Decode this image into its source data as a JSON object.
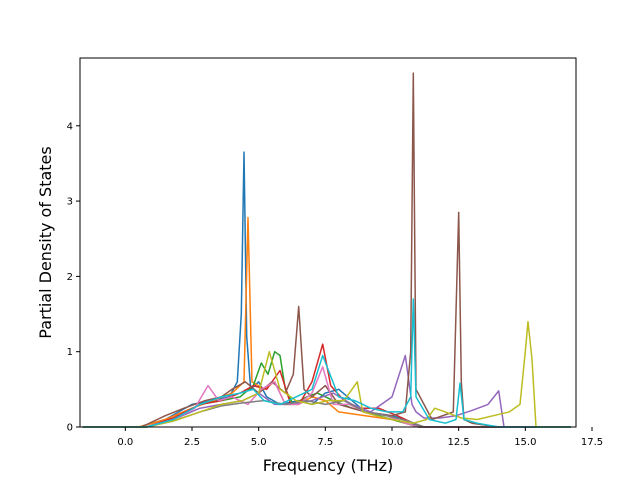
{
  "chart_data": {
    "type": "line",
    "title": "",
    "xlabel": "Frequency (THz)",
    "ylabel": "Partial Density of States",
    "xlim": [
      -1.7,
      16.9
    ],
    "ylim": [
      0,
      4.9
    ],
    "xticks": [
      0.0,
      2.5,
      5.0,
      7.5,
      10.0,
      12.5,
      15.0,
      17.5
    ],
    "xtick_labels": [
      "0.0",
      "2.5",
      "5.0",
      "7.5",
      "10.0",
      "12.5",
      "15.0",
      "17.5"
    ],
    "yticks": [
      0,
      1,
      2,
      3,
      4
    ],
    "ytick_labels": [
      "0",
      "1",
      "2",
      "3",
      "4"
    ],
    "grid": false,
    "legend": "none",
    "series": [
      {
        "color": "#1f77b4",
        "x": [
          -1.6,
          0.5,
          1.5,
          2.5,
          3.3,
          3.9,
          4.2,
          4.35,
          4.45,
          4.55,
          4.7,
          5.0,
          5.3,
          5.8,
          6.5,
          7.0,
          7.5,
          8.0,
          8.5,
          9.0,
          10.0,
          10.5,
          11.0,
          12.0,
          13.0,
          14.0,
          16.7
        ],
        "y": [
          0,
          0,
          0.1,
          0.3,
          0.35,
          0.4,
          0.6,
          1.5,
          3.65,
          1.2,
          0.5,
          0.6,
          0.4,
          0.3,
          0.35,
          0.3,
          0.45,
          0.5,
          0.35,
          0.2,
          0.15,
          0.1,
          0,
          0,
          0,
          0,
          0
        ]
      },
      {
        "color": "#ff7f0e",
        "x": [
          -1.6,
          0.5,
          1.5,
          2.5,
          3.3,
          4.0,
          4.45,
          4.6,
          4.75,
          5.2,
          5.6,
          6.0,
          6.5,
          7.0,
          7.5,
          8.0,
          9.0,
          10.0,
          11.0,
          16.7
        ],
        "y": [
          0,
          0,
          0.1,
          0.25,
          0.35,
          0.45,
          0.6,
          2.78,
          0.6,
          0.5,
          0.6,
          0.3,
          0.3,
          0.4,
          0.35,
          0.2,
          0.15,
          0.1,
          0,
          0
        ]
      },
      {
        "color": "#2ca02c",
        "x": [
          -1.6,
          0.8,
          1.8,
          2.8,
          3.6,
          4.3,
          4.8,
          5.1,
          5.35,
          5.6,
          5.8,
          6.0,
          6.3,
          6.8,
          7.2,
          7.8,
          8.5,
          9.5,
          10.5,
          11.0,
          16.7
        ],
        "y": [
          0,
          0,
          0.1,
          0.3,
          0.35,
          0.4,
          0.55,
          0.85,
          0.7,
          1.0,
          0.95,
          0.5,
          0.3,
          0.4,
          0.45,
          0.35,
          0.25,
          0.15,
          0.05,
          0,
          0
        ]
      },
      {
        "color": "#d62728",
        "x": [
          -1.6,
          0.8,
          1.8,
          2.8,
          3.6,
          4.3,
          4.8,
          5.3,
          5.8,
          6.2,
          6.6,
          7.0,
          7.4,
          7.7,
          8.2,
          8.8,
          9.5,
          10.2,
          10.8,
          11.2,
          16.7
        ],
        "y": [
          0,
          0,
          0.12,
          0.3,
          0.35,
          0.45,
          0.55,
          0.5,
          0.75,
          0.3,
          0.35,
          0.6,
          1.1,
          0.55,
          0.35,
          0.25,
          0.25,
          0.15,
          0.05,
          0,
          0
        ]
      },
      {
        "color": "#9467bd",
        "x": [
          -1.6,
          0.8,
          1.8,
          2.8,
          3.6,
          4.4,
          5.0,
          5.6,
          6.2,
          7.0,
          7.8,
          8.5,
          9.2,
          10.0,
          10.5,
          10.75,
          10.9,
          11.2,
          11.8,
          12.4,
          13.0,
          13.6,
          14.0,
          14.2,
          16.7
        ],
        "y": [
          0,
          0,
          0.1,
          0.25,
          0.3,
          0.35,
          0.45,
          0.3,
          0.3,
          0.35,
          0.45,
          0.3,
          0.2,
          0.4,
          0.95,
          0.3,
          0.2,
          0.12,
          0.12,
          0.15,
          0.22,
          0.3,
          0.48,
          0,
          0
        ]
      },
      {
        "color": "#8c564b",
        "x": [
          -1.6,
          0.6,
          1.5,
          2.2,
          3.0,
          3.6,
          4.0,
          4.5,
          5.0,
          5.5,
          6.0,
          6.3,
          6.5,
          6.7,
          7.0,
          7.5,
          8.0,
          9.0,
          10.0,
          10.5,
          10.7,
          10.8,
          10.9,
          11.5,
          12.3,
          12.5,
          12.6,
          12.7,
          13.0,
          14.0,
          16.7
        ],
        "y": [
          0,
          0,
          0.15,
          0.25,
          0.35,
          0.4,
          0.5,
          0.6,
          0.45,
          0.6,
          0.45,
          0.7,
          1.6,
          0.5,
          0.4,
          0.55,
          0.3,
          0.2,
          0.15,
          0.2,
          1.0,
          4.7,
          0.5,
          0.1,
          0.2,
          2.85,
          0.6,
          0.1,
          0.05,
          0,
          0
        ]
      },
      {
        "color": "#e377c2",
        "x": [
          -1.6,
          0.8,
          1.8,
          2.6,
          3.1,
          3.5,
          4.0,
          4.6,
          5.1,
          5.6,
          6.0,
          6.5,
          7.0,
          7.4,
          7.8,
          8.4,
          9.0,
          9.8,
          10.5,
          11.0,
          16.7
        ],
        "y": [
          0,
          0,
          0.1,
          0.25,
          0.55,
          0.35,
          0.4,
          0.3,
          0.5,
          0.6,
          0.3,
          0.3,
          0.45,
          0.8,
          0.3,
          0.3,
          0.2,
          0.15,
          0.05,
          0,
          0
        ]
      },
      {
        "color": "#7f7f7f",
        "x": [
          -1.6,
          0.8,
          1.8,
          2.8,
          3.6,
          4.4,
          5.2,
          6.0,
          6.8,
          7.5,
          8.2,
          9.0,
          9.8,
          10.6,
          11.2,
          16.7
        ],
        "y": [
          0,
          0,
          0.08,
          0.2,
          0.28,
          0.32,
          0.35,
          0.3,
          0.35,
          0.3,
          0.35,
          0.2,
          0.15,
          0.08,
          0,
          0
        ]
      },
      {
        "color": "#bcbd22",
        "x": [
          -1.6,
          0.8,
          1.8,
          2.8,
          3.6,
          4.4,
          5.0,
          5.4,
          5.8,
          6.4,
          7.0,
          7.6,
          8.2,
          8.7,
          8.9,
          9.4,
          10.0,
          10.8,
          11.3,
          11.6,
          12.0,
          12.6,
          13.2,
          13.8,
          14.4,
          14.8,
          15.0,
          15.1,
          15.25,
          15.4,
          16.7
        ],
        "y": [
          0,
          0,
          0.08,
          0.2,
          0.3,
          0.35,
          0.45,
          1.0,
          0.5,
          0.35,
          0.3,
          0.35,
          0.35,
          0.6,
          0.2,
          0.15,
          0.1,
          0.05,
          0.1,
          0.25,
          0.2,
          0.12,
          0.1,
          0.15,
          0.2,
          0.3,
          1.0,
          1.4,
          0.9,
          0,
          0
        ]
      },
      {
        "color": "#17becf",
        "x": [
          -1.6,
          0.8,
          1.8,
          2.8,
          3.6,
          4.3,
          4.8,
          5.2,
          5.8,
          6.4,
          7.0,
          7.4,
          8.0,
          8.6,
          9.2,
          9.8,
          10.4,
          10.7,
          10.8,
          10.9,
          11.4,
          12.0,
          12.4,
          12.55,
          12.7,
          13.2,
          14.0,
          16.7
        ],
        "y": [
          0,
          0,
          0.1,
          0.3,
          0.4,
          0.45,
          0.5,
          0.35,
          0.3,
          0.4,
          0.5,
          0.95,
          0.4,
          0.35,
          0.25,
          0.2,
          0.2,
          0.4,
          1.7,
          0.4,
          0.1,
          0.05,
          0.1,
          0.58,
          0.1,
          0.05,
          0,
          0
        ]
      }
    ]
  }
}
